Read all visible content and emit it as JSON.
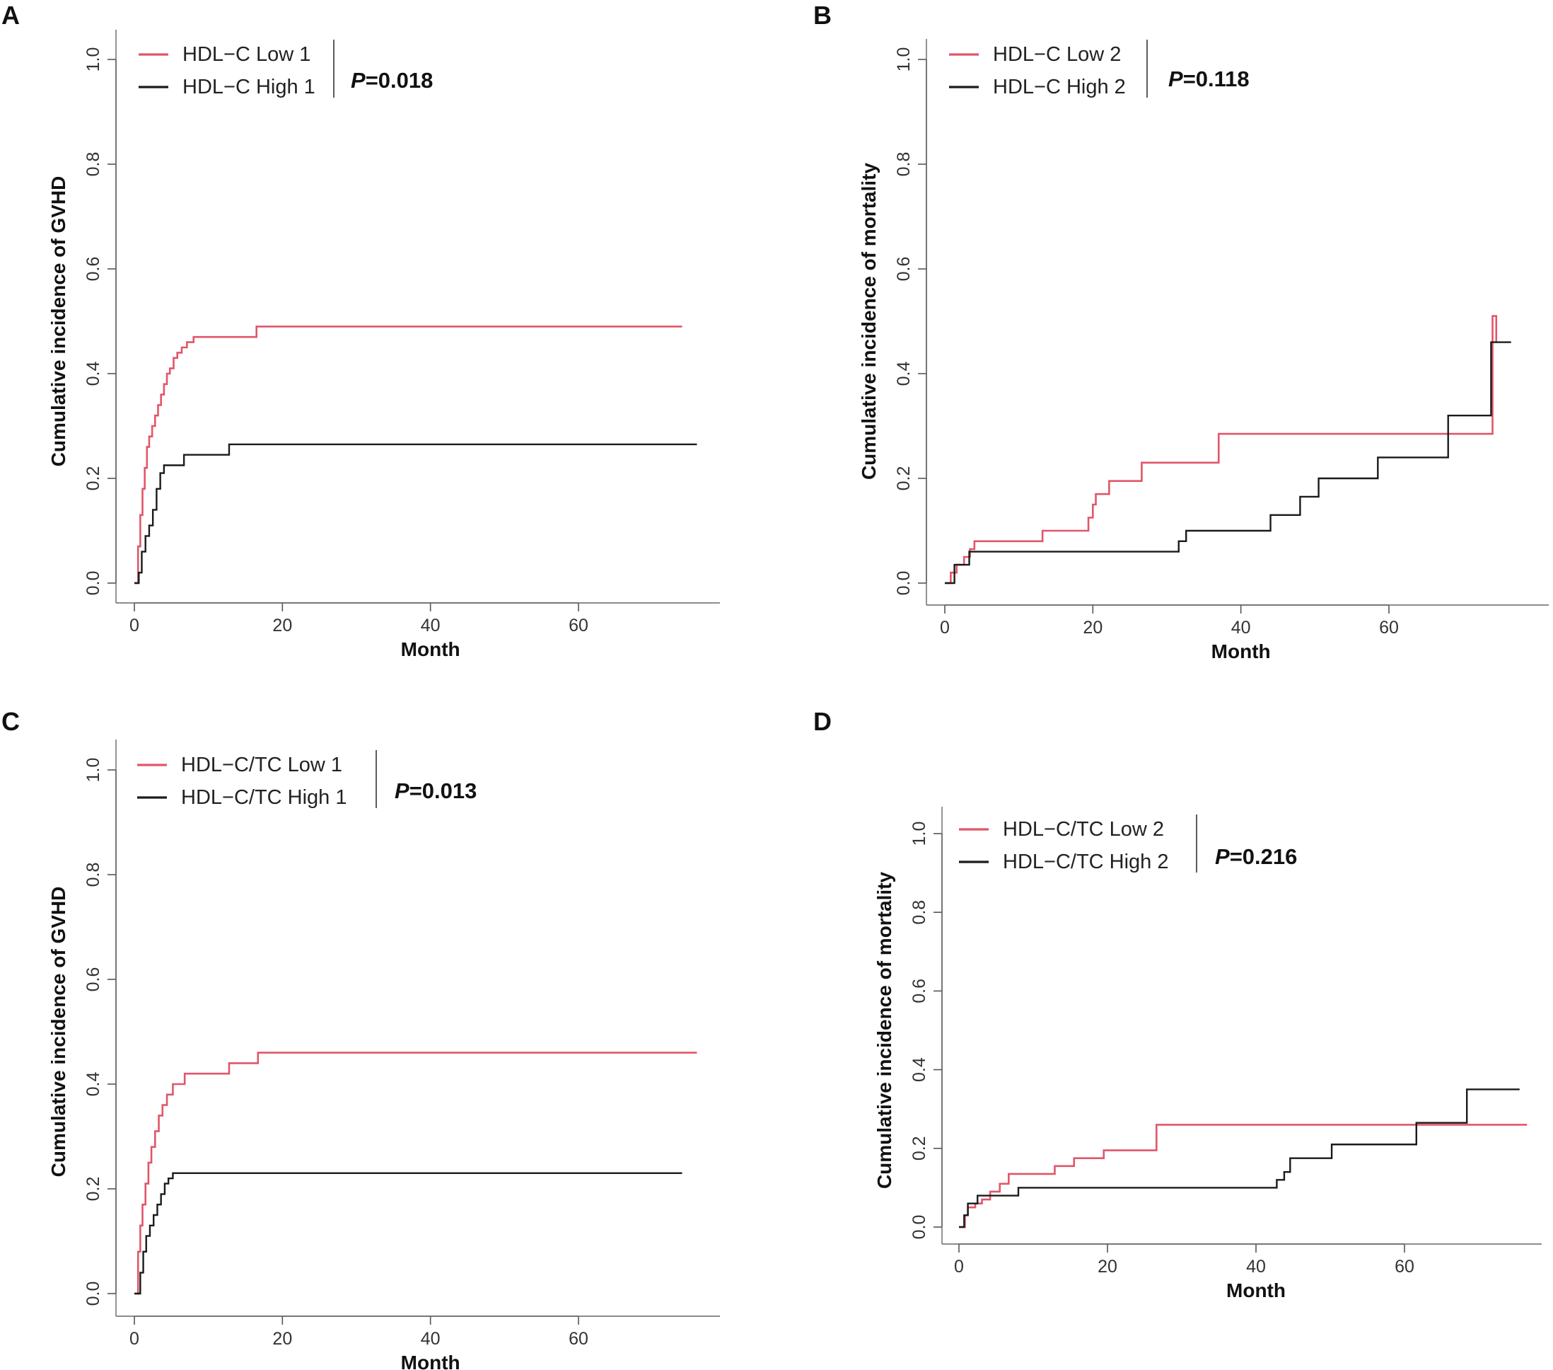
{
  "colors": {
    "low": "#e0566a",
    "high": "#1a1a1a"
  },
  "chart_data": [
    {
      "type": "line",
      "panel": "A",
      "xlabel": "Month",
      "ylabel": "Cumulative incidence of GVHD",
      "xlim": [
        0,
        79
      ],
      "ylim": [
        0,
        1
      ],
      "xticks": [
        "0",
        "20",
        "40",
        "60"
      ],
      "yticks": [
        "0.0",
        "0.2",
        "0.4",
        "0.6",
        "0.8",
        "1.0"
      ],
      "pvalue_label": "P",
      "pvalue_value": "=0.018",
      "series": [
        {
          "name": "HDL−C Low 1",
          "color": "#e0566a",
          "x": [
            0,
            0.5,
            0.8,
            1.1,
            1.4,
            1.7,
            2.0,
            2.4,
            2.8,
            3.2,
            3.6,
            4.0,
            4.4,
            4.8,
            5.3,
            5.8,
            6.4,
            7.1,
            8.0,
            16.5,
            74
          ],
          "y": [
            0,
            0.07,
            0.13,
            0.18,
            0.22,
            0.26,
            0.28,
            0.3,
            0.32,
            0.34,
            0.36,
            0.38,
            0.4,
            0.41,
            0.43,
            0.44,
            0.45,
            0.46,
            0.47,
            0.49,
            0.49
          ]
        },
        {
          "name": "HDL−C High 1",
          "color": "#1a1a1a",
          "x": [
            0,
            0.6,
            1.0,
            1.5,
            2.0,
            2.5,
            3.0,
            3.5,
            4.0,
            6.7,
            12.8,
            76
          ],
          "y": [
            0,
            0.02,
            0.06,
            0.09,
            0.11,
            0.14,
            0.18,
            0.21,
            0.225,
            0.245,
            0.265,
            0.265
          ]
        }
      ]
    },
    {
      "type": "line",
      "panel": "B",
      "xlabel": "Month",
      "ylabel": "Cumulative incidence of mortality",
      "xlim": [
        0,
        79
      ],
      "ylim": [
        0,
        1
      ],
      "xticks": [
        "0",
        "20",
        "40",
        "60"
      ],
      "yticks": [
        "0.0",
        "0.2",
        "0.4",
        "0.6",
        "0.8",
        "1.0"
      ],
      "pvalue_label": "P",
      "pvalue_value": "=0.118",
      "series": [
        {
          "name": "HDL−C Low 2",
          "color": "#e0566a",
          "x": [
            0,
            0.8,
            1.6,
            2.6,
            3.4,
            4.0,
            13.2,
            19.4,
            20.0,
            20.4,
            22.2,
            26.6,
            37.0,
            74.0,
            74.5
          ],
          "y": [
            0,
            0.02,
            0.035,
            0.05,
            0.065,
            0.08,
            0.1,
            0.125,
            0.15,
            0.17,
            0.195,
            0.23,
            0.285,
            0.51,
            0.46
          ]
        },
        {
          "name": "HDL−C High 2",
          "color": "#1a1a1a",
          "x": [
            0,
            1.3,
            3.3,
            31.6,
            32.6,
            44.0,
            48.0,
            50.5,
            58.5,
            68.0,
            73.8,
            76.5
          ],
          "y": [
            0,
            0.035,
            0.06,
            0.08,
            0.1,
            0.13,
            0.165,
            0.2,
            0.24,
            0.32,
            0.46,
            0.46
          ]
        }
      ]
    },
    {
      "type": "line",
      "panel": "C",
      "xlabel": "Month",
      "ylabel": "Cumulative incidence of GVHD",
      "xlim": [
        0,
        79
      ],
      "ylim": [
        0,
        1
      ],
      "xticks": [
        "0",
        "20",
        "40",
        "60"
      ],
      "yticks": [
        "0.0",
        "0.2",
        "0.4",
        "0.6",
        "0.8",
        "1.0"
      ],
      "pvalue_label": "P",
      "pvalue_value": "=0.013",
      "series": [
        {
          "name": "HDL−C/TC Low 1",
          "color": "#e0566a",
          "x": [
            0,
            0.5,
            0.8,
            1.1,
            1.5,
            1.9,
            2.3,
            2.8,
            3.3,
            3.8,
            4.4,
            5.2,
            6.8,
            12.8,
            16.7,
            76
          ],
          "y": [
            0,
            0.08,
            0.13,
            0.17,
            0.21,
            0.25,
            0.28,
            0.31,
            0.34,
            0.36,
            0.38,
            0.4,
            0.42,
            0.44,
            0.46,
            0.46
          ]
        },
        {
          "name": "HDL−C/TC High 1",
          "color": "#1a1a1a",
          "x": [
            0,
            0.8,
            1.2,
            1.6,
            2.1,
            2.6,
            3.1,
            3.6,
            4.1,
            4.6,
            5.2,
            74
          ],
          "y": [
            0,
            0.04,
            0.08,
            0.11,
            0.13,
            0.15,
            0.17,
            0.19,
            0.21,
            0.22,
            0.23,
            0.23
          ]
        }
      ]
    },
    {
      "type": "line",
      "panel": "D",
      "xlabel": "Month",
      "ylabel": "Cumulative incidence of mortality",
      "xlim": [
        0,
        79
      ],
      "ylim": [
        0,
        1
      ],
      "xticks": [
        "0",
        "20",
        "40",
        "60"
      ],
      "yticks": [
        "0.0",
        "0.2",
        "0.4",
        "0.6",
        "0.8",
        "1.0"
      ],
      "pvalue_label": "P",
      "pvalue_value": "=0.216",
      "series": [
        {
          "name": "HDL−C/TC Low 2",
          "color": "#e0566a",
          "x": [
            0,
            0.8,
            1.2,
            2.2,
            3.1,
            4.2,
            5.5,
            6.7,
            12.9,
            15.5,
            19.5,
            26.6,
            76.5
          ],
          "y": [
            0,
            0.03,
            0.05,
            0.06,
            0.07,
            0.09,
            0.11,
            0.135,
            0.155,
            0.175,
            0.195,
            0.26,
            0.26
          ]
        },
        {
          "name": "HDL−C/TC High 2",
          "color": "#1a1a1a",
          "x": [
            0,
            0.7,
            1.2,
            2.5,
            8.0,
            42.8,
            43.8,
            44.6,
            50.2,
            61.6,
            68.4,
            75.5
          ],
          "y": [
            0,
            0.03,
            0.06,
            0.08,
            0.1,
            0.12,
            0.14,
            0.175,
            0.21,
            0.265,
            0.35,
            0.35
          ]
        }
      ]
    }
  ]
}
